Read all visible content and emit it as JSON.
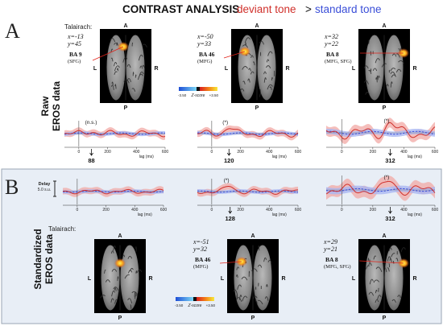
{
  "title": {
    "prefix": "CONTRAST ANALYSIS",
    "deviant": "deviant tone",
    "gt": ">",
    "standard": "standard tone"
  },
  "colors": {
    "deviant": "#d0302b",
    "standard": "#3b4fd8",
    "deviant_band": "#f2a8a4",
    "standard_band": "#a9b6f2",
    "panel_bg": "#e8eef6",
    "panel_border": "#9aa6b4"
  },
  "sections": {
    "A": {
      "letter": "A",
      "side_label_1": "Raw",
      "side_label_2": "EROS data"
    },
    "B": {
      "letter": "B",
      "side_label_1": "Standardized",
      "side_label_2": "EROS data"
    }
  },
  "talairach_label": "Talairach:",
  "brain_orientation": {
    "anterior": "A",
    "posterior": "P",
    "left": "L",
    "right": "R"
  },
  "colorbar": {
    "min": "-3.50",
    "max": "+3.50",
    "label": "Z-score"
  },
  "delay_scale": {
    "label": "Delay",
    "value": "5.0 s.u."
  },
  "axis": {
    "xlabel": "lag (ms)",
    "ticks": [
      "0",
      "200",
      "400",
      "600"
    ]
  },
  "rows": {
    "A_brains": [
      {
        "x": "x=-13",
        "y": "y=45",
        "ba": "BA 9",
        "region": "(SFG)"
      },
      {
        "x": "x=-50",
        "y": "y=33",
        "ba": "BA 46",
        "region": "(MFG)"
      },
      {
        "x": "x=32",
        "y": "y=22",
        "ba": "BA 8",
        "region": "(MFG, SFG)"
      }
    ],
    "A_traces": [
      {
        "marker": "88",
        "sig": "(n.s.)"
      },
      {
        "marker": "120",
        "sig": "(*)"
      },
      {
        "marker": "312",
        "sig": "(*)"
      }
    ],
    "B_traces": [
      {
        "marker": "",
        "sig": ""
      },
      {
        "marker": "128",
        "sig": "(*)"
      },
      {
        "marker": "312",
        "sig": "(*)"
      }
    ],
    "B_brains": [
      {
        "x": "",
        "y": "",
        "ba": "",
        "region": ""
      },
      {
        "x": "x=-51",
        "y": "y=32",
        "ba": "BA 46",
        "region": "(MFG)"
      },
      {
        "x": "x=29",
        "y": "y=21",
        "ba": "BA 8",
        "region": "(MFG, SFG)"
      }
    ]
  }
}
